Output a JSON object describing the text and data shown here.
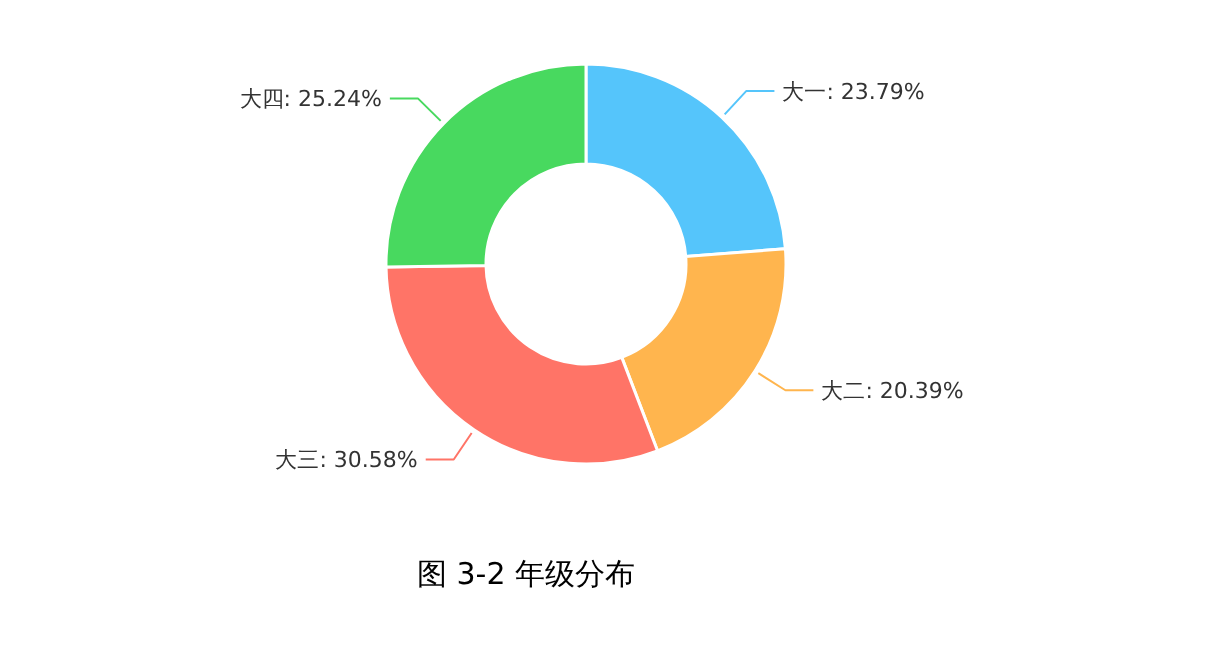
{
  "chart_data": {
    "type": "donut",
    "categories": [
      "大一",
      "大二",
      "大三",
      "大四"
    ],
    "values": [
      23.79,
      20.39,
      30.58,
      25.24
    ],
    "value_labels": [
      "23.79%",
      "20.39%",
      "30.58%",
      "25.24%"
    ],
    "colors": [
      "#55c5fb",
      "#ffb54e",
      "#ff7467",
      "#48d95f"
    ],
    "annotations": [
      "图 3-2 年级分布"
    ],
    "legend": false
  }
}
